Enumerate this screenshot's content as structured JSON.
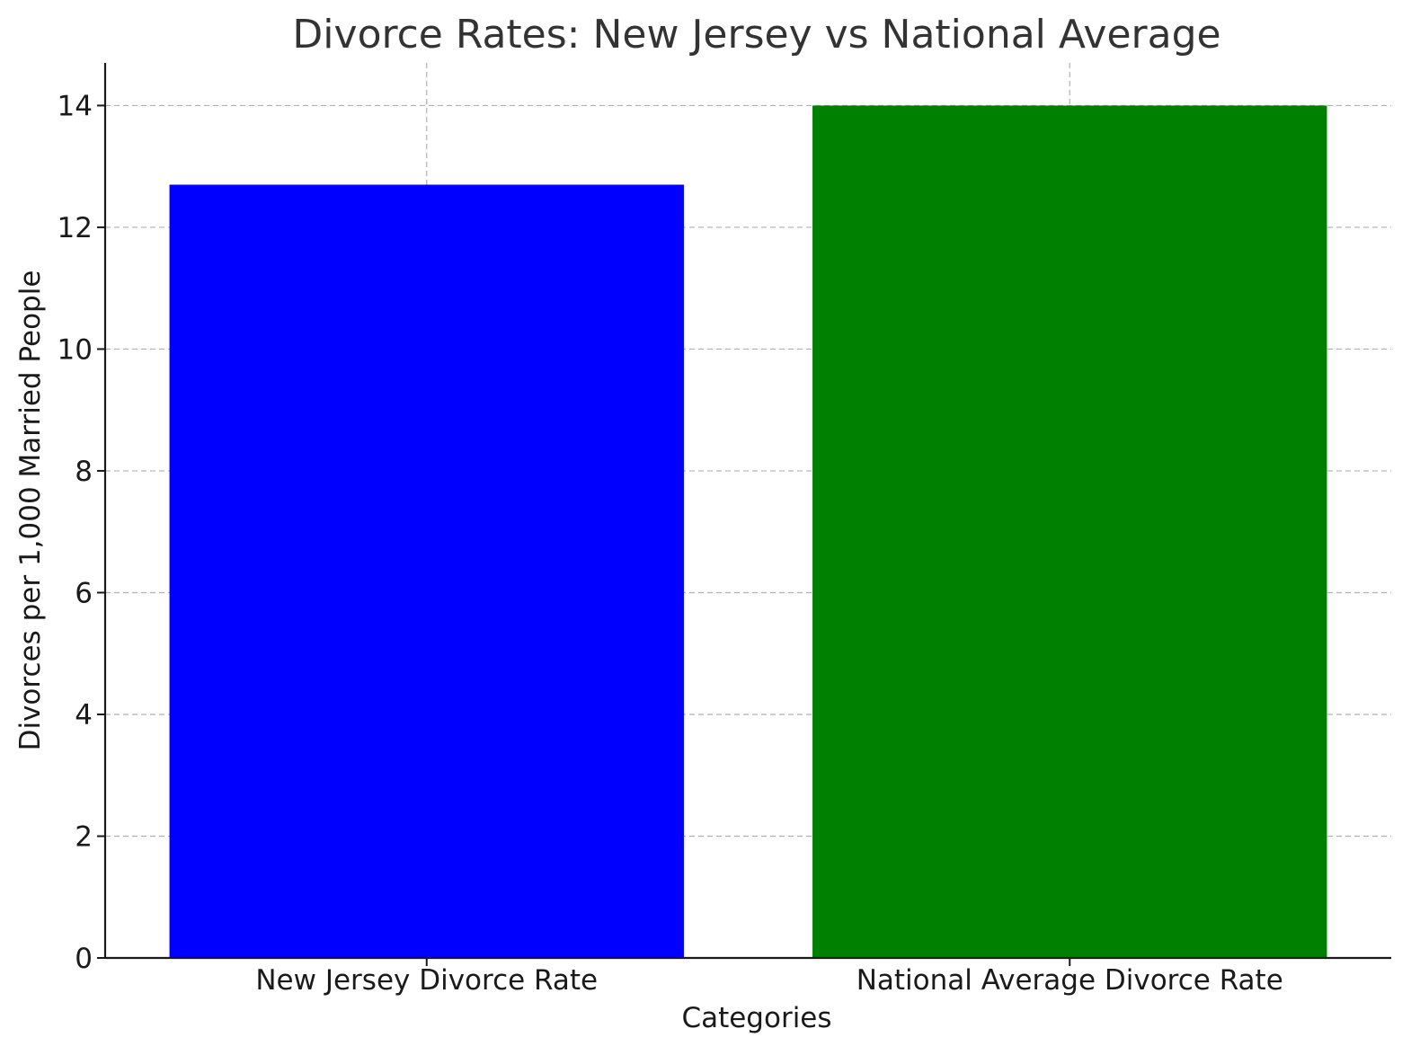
{
  "chart_data": {
    "type": "bar",
    "title": "Divorce Rates: New Jersey vs National Average",
    "xlabel": "Categories",
    "ylabel": "Divorces per 1,000 Married People",
    "categories": [
      "New Jersey Divorce Rate",
      "National Average Divorce Rate"
    ],
    "values": [
      12.7,
      14.0
    ],
    "colors": [
      "#0000ff",
      "#008000"
    ],
    "ylim": [
      0,
      14.7
    ],
    "yticks": [
      0,
      2,
      4,
      6,
      8,
      10,
      12,
      14
    ],
    "grid": true,
    "grid_style": "dashed",
    "legend": false
  }
}
